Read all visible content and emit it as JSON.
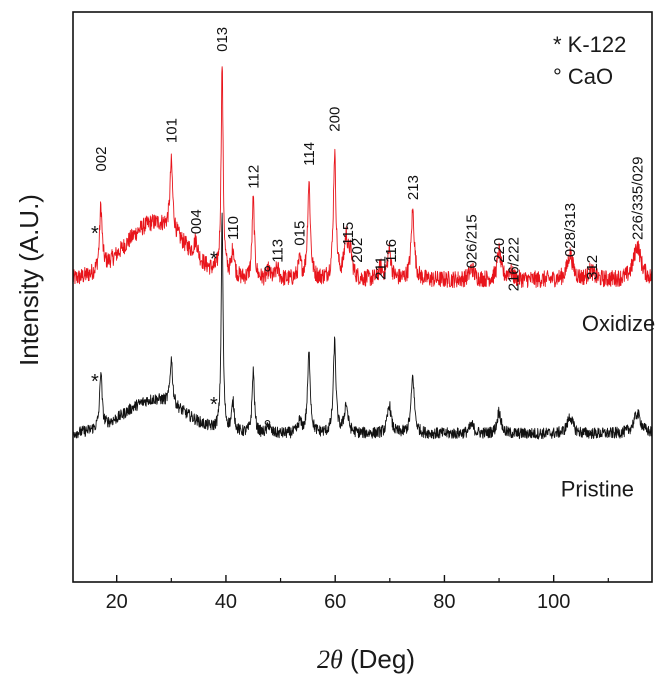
{
  "chart_data": {
    "type": "line",
    "xlabel_italic": "2θ",
    "xlabel_unit": " (Deg)",
    "ylabel": "Intensity (A.U.)",
    "xlim": [
      12,
      118
    ],
    "ylim": [
      0,
      100
    ],
    "x_ticks": [
      20,
      40,
      60,
      80,
      100
    ],
    "y_ticks_shown": false,
    "legend": {
      "placement": "top-right",
      "entries": [
        {
          "symbol": "*",
          "label": "K-122"
        },
        {
          "symbol": "°",
          "label": "CaO"
        }
      ]
    },
    "series": [
      {
        "name": "Oxidized",
        "color": "#e8141b",
        "baseline": 53,
        "hump": {
          "center": 27,
          "width": 5.5,
          "height": 10
        },
        "peaks": [
          {
            "x": 17.1,
            "height": 11,
            "width": 0.28
          },
          {
            "x": 30.0,
            "height": 12,
            "width": 0.3
          },
          {
            "x": 34.5,
            "height": 3,
            "width": 0.4
          },
          {
            "x": 39.3,
            "height": 37,
            "width": 0.22
          },
          {
            "x": 41.3,
            "height": 5,
            "width": 0.3
          },
          {
            "x": 45.0,
            "height": 14,
            "width": 0.25
          },
          {
            "x": 47.8,
            "height": 1.5,
            "width": 0.3
          },
          {
            "x": 49.4,
            "height": 2,
            "width": 0.35
          },
          {
            "x": 53.5,
            "height": 3,
            "width": 0.35
          },
          {
            "x": 55.2,
            "height": 17,
            "width": 0.3
          },
          {
            "x": 59.9,
            "height": 22,
            "width": 0.28
          },
          {
            "x": 62.0,
            "height": 7,
            "width": 0.4
          },
          {
            "x": 62.8,
            "height": 4,
            "width": 0.4
          },
          {
            "x": 68.3,
            "height": 2,
            "width": 0.4
          },
          {
            "x": 69.9,
            "height": 5,
            "width": 0.4
          },
          {
            "x": 74.2,
            "height": 12,
            "width": 0.35
          },
          {
            "x": 85.0,
            "height": 2,
            "width": 0.5
          },
          {
            "x": 90.0,
            "height": 5,
            "width": 0.4
          },
          {
            "x": 92.0,
            "height": 1.5,
            "width": 0.5
          },
          {
            "x": 103.0,
            "height": 4.5,
            "width": 0.6
          },
          {
            "x": 106.8,
            "height": 1.5,
            "width": 0.6
          },
          {
            "x": 115.3,
            "height": 6,
            "width": 0.8
          }
        ]
      },
      {
        "name": "Pristine",
        "color": "#111111",
        "baseline": 26,
        "hump": {
          "center": 27,
          "width": 5.5,
          "height": 6
        },
        "peaks": [
          {
            "x": 17.1,
            "height": 10,
            "width": 0.25
          },
          {
            "x": 30.0,
            "height": 8,
            "width": 0.28
          },
          {
            "x": 39.3,
            "height": 38,
            "width": 0.2
          },
          {
            "x": 41.3,
            "height": 5,
            "width": 0.3
          },
          {
            "x": 45.0,
            "height": 11,
            "width": 0.25
          },
          {
            "x": 47.8,
            "height": 1.5,
            "width": 0.3
          },
          {
            "x": 53.5,
            "height": 2,
            "width": 0.35
          },
          {
            "x": 55.2,
            "height": 14,
            "width": 0.3
          },
          {
            "x": 59.9,
            "height": 16,
            "width": 0.28
          },
          {
            "x": 62.0,
            "height": 5,
            "width": 0.4
          },
          {
            "x": 69.9,
            "height": 5,
            "width": 0.4
          },
          {
            "x": 74.2,
            "height": 10,
            "width": 0.35
          },
          {
            "x": 85.0,
            "height": 1.5,
            "width": 0.5
          },
          {
            "x": 90.0,
            "height": 4,
            "width": 0.4
          },
          {
            "x": 103.0,
            "height": 3,
            "width": 0.6
          },
          {
            "x": 115.3,
            "height": 3.5,
            "width": 0.8
          }
        ]
      }
    ],
    "peak_labels": [
      {
        "text": "002",
        "x": 17.1,
        "y": 72
      },
      {
        "text": "101",
        "x": 30.0,
        "y": 77
      },
      {
        "text": "004",
        "x": 34.5,
        "y": 61
      },
      {
        "text": "013",
        "x": 39.3,
        "y": 93
      },
      {
        "text": "110",
        "x": 41.3,
        "y": 60
      },
      {
        "text": "112",
        "x": 45.0,
        "y": 69
      },
      {
        "text": "113",
        "x": 49.4,
        "y": 56
      },
      {
        "text": "015",
        "x": 53.5,
        "y": 59
      },
      {
        "text": "114",
        "x": 55.2,
        "y": 73
      },
      {
        "text": "200",
        "x": 59.9,
        "y": 79
      },
      {
        "text": "115",
        "x": 62.3,
        "y": 59
      },
      {
        "text": "202",
        "x": 64.0,
        "y": 56
      },
      {
        "text": "211",
        "x": 68.3,
        "y": 53
      },
      {
        "text": "116",
        "x": 70.2,
        "y": 56
      },
      {
        "text": "213",
        "x": 74.2,
        "y": 67
      },
      {
        "text": "026/215",
        "x": 85.0,
        "y": 55
      },
      {
        "text": "220",
        "x": 90.0,
        "y": 56
      },
      {
        "text": "216/222",
        "x": 92.6,
        "y": 51
      },
      {
        "text": "028/313",
        "x": 103.0,
        "y": 57
      },
      {
        "text": "312",
        "x": 107.0,
        "y": 53
      },
      {
        "text": "226/335/029",
        "x": 115.3,
        "y": 60
      }
    ],
    "markers": [
      {
        "symbol": "*",
        "x": 16.0,
        "y": 60
      },
      {
        "symbol": "*",
        "x": 37.8,
        "y": 55.5
      },
      {
        "symbol": "°",
        "x": 47.6,
        "y": 53
      },
      {
        "symbol": "*",
        "x": 16.0,
        "y": 34
      },
      {
        "symbol": "*",
        "x": 37.8,
        "y": 30
      },
      {
        "symbol": "°",
        "x": 47.6,
        "y": 26
      }
    ],
    "series_labels": [
      {
        "text": "Oxidized",
        "x": 113,
        "y": 44
      },
      {
        "text": "Pristine",
        "x": 108,
        "y": 15
      }
    ]
  }
}
